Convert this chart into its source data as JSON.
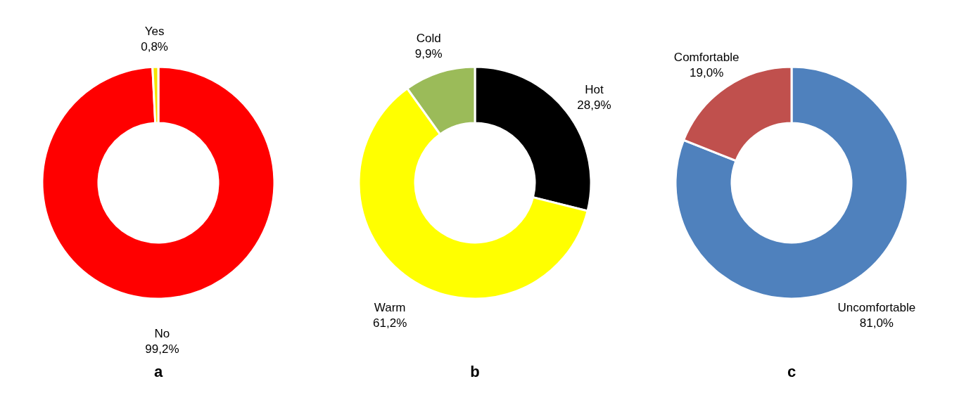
{
  "chart_data": [
    {
      "type": "donut",
      "title": "a",
      "categories": [
        "No",
        "Yes"
      ],
      "values": [
        99.2,
        0.8
      ],
      "colors": [
        "#ff0000",
        "#f5e400"
      ],
      "value_labels": [
        "99,2%",
        "0,8%"
      ],
      "legend": false
    },
    {
      "type": "donut",
      "title": "b",
      "categories": [
        "Hot",
        "Warm",
        "Cold"
      ],
      "values": [
        28.9,
        61.2,
        9.9
      ],
      "colors": [
        "#000000",
        "#ffff00",
        "#9bbb59"
      ],
      "value_labels": [
        "28,9%",
        "61,2%",
        "9,9%"
      ],
      "legend": false
    },
    {
      "type": "donut",
      "title": "c",
      "categories": [
        "Uncomfortable",
        "Comfortable"
      ],
      "values": [
        81.0,
        19.0
      ],
      "colors": [
        "#4f81bd",
        "#c0504d"
      ],
      "value_labels": [
        "81,0%",
        "19,0%"
      ],
      "legend": false
    }
  ]
}
